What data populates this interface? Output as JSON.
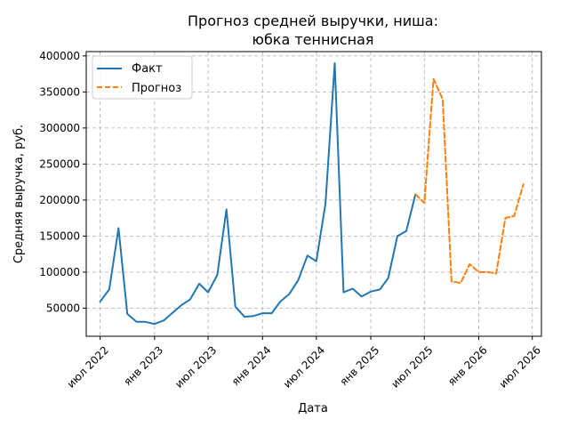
{
  "chart_data": {
    "type": "line",
    "title_lines": [
      "Прогноз средней выручки, ниша:",
      "юбка теннисная"
    ],
    "xlabel": "Дата",
    "ylabel": "Средняя выручка, руб.",
    "x_ticks": [
      {
        "date": "2022-07-01",
        "label": "июл 2022"
      },
      {
        "date": "2023-01-01",
        "label": "янв 2023"
      },
      {
        "date": "2023-07-01",
        "label": "июл 2023"
      },
      {
        "date": "2024-01-01",
        "label": "янв 2024"
      },
      {
        "date": "2024-07-01",
        "label": "июл 2024"
      },
      {
        "date": "2025-01-01",
        "label": "янв 2025"
      },
      {
        "date": "2025-07-01",
        "label": "июл 2025"
      },
      {
        "date": "2026-01-01",
        "label": "янв 2026"
      },
      {
        "date": "2026-07-01",
        "label": "июл 2026"
      }
    ],
    "xlim": [
      "2022-05-15",
      "2026-08-01"
    ],
    "y_ticks": [
      {
        "value": 50000,
        "label": "50000"
      },
      {
        "value": 100000,
        "label": "100000"
      },
      {
        "value": 150000,
        "label": "150000"
      },
      {
        "value": 200000,
        "label": "200000"
      },
      {
        "value": 250000,
        "label": "250000"
      },
      {
        "value": 300000,
        "label": "300000"
      },
      {
        "value": 350000,
        "label": "350000"
      },
      {
        "value": 400000,
        "label": "400000"
      }
    ],
    "ylim": [
      11000,
      406000
    ],
    "grid": true,
    "legend_position": "top-left",
    "series": [
      {
        "name": "Факт",
        "color": "#1f77b4",
        "style": "solid",
        "x": [
          "2022-07-01",
          "2022-08-01",
          "2022-09-01",
          "2022-10-01",
          "2022-11-01",
          "2022-12-01",
          "2023-01-01",
          "2023-02-01",
          "2023-03-01",
          "2023-04-01",
          "2023-05-01",
          "2023-06-01",
          "2023-07-01",
          "2023-08-01",
          "2023-09-01",
          "2023-10-01",
          "2023-11-01",
          "2023-12-01",
          "2024-01-01",
          "2024-02-01",
          "2024-03-01",
          "2024-04-01",
          "2024-05-01",
          "2024-06-01",
          "2024-07-01",
          "2024-08-01",
          "2024-09-01",
          "2024-10-01",
          "2024-11-01",
          "2024-12-01",
          "2025-01-01",
          "2025-02-01",
          "2025-03-01",
          "2025-04-01",
          "2025-05-01",
          "2025-06-01"
        ],
        "values": [
          59000,
          76000,
          161000,
          42000,
          31000,
          31000,
          28000,
          33000,
          43000,
          54000,
          62000,
          84000,
          72000,
          96000,
          187000,
          52000,
          38000,
          39000,
          43000,
          43000,
          59000,
          70000,
          89000,
          123000,
          115000,
          195000,
          390000,
          72000,
          77000,
          66000,
          73000,
          76000,
          92000,
          150000,
          157000,
          208000
        ]
      },
      {
        "name": "Прогноз",
        "color": "#ff7f0e",
        "style": "dashed",
        "x": [
          "2025-06-01",
          "2025-07-01",
          "2025-08-01",
          "2025-09-01",
          "2025-10-01",
          "2025-11-01",
          "2025-12-01",
          "2026-01-01",
          "2026-02-01",
          "2026-03-01",
          "2026-04-01",
          "2026-05-01",
          "2026-06-01"
        ],
        "values": [
          208000,
          196000,
          368000,
          340000,
          87000,
          85000,
          111000,
          100000,
          100000,
          98000,
          175000,
          178000,
          222000
        ]
      }
    ]
  }
}
